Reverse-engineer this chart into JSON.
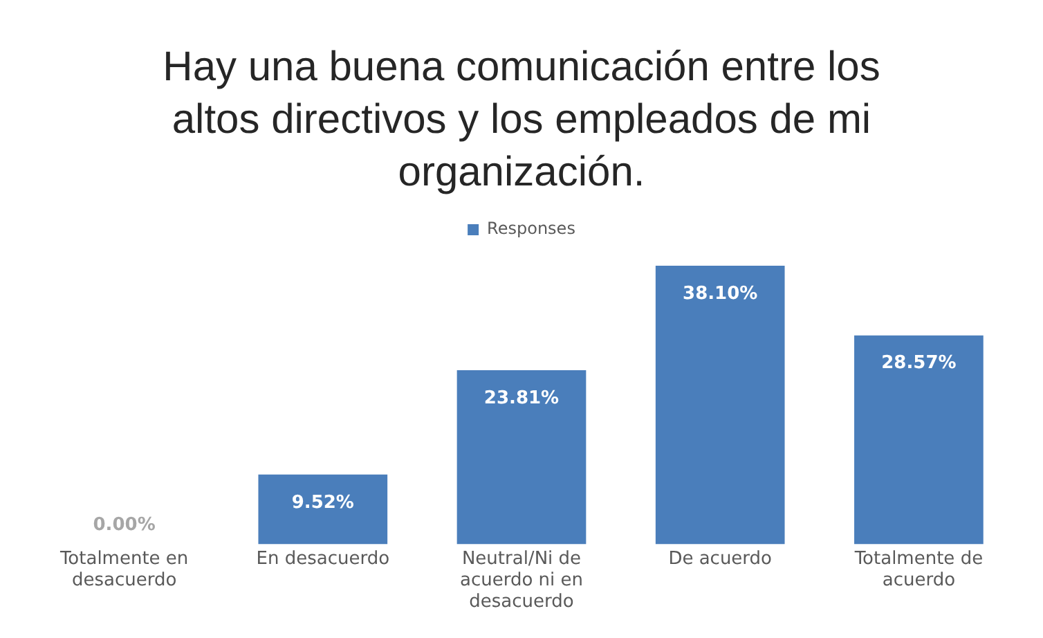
{
  "chart_data": {
    "type": "bar",
    "title": "Hay una buena comunicación entre los altos directivos y los empleados de mi organización.",
    "categories": [
      "Totalmente en desacuerdo",
      "En desacuerdo",
      "Neutral/Ni de acuerdo ni en desacuerdo",
      "De acuerdo",
      "Totalmente de acuerdo"
    ],
    "series": [
      {
        "name": "Responses",
        "color": "#4a7ebb",
        "values": [
          0,
          9.52,
          23.81,
          38.1,
          28.57
        ],
        "value_labels": [
          "0.00%",
          "9.52%",
          "23.81%",
          "38.10%",
          "28.57%"
        ]
      }
    ],
    "legend": "top",
    "grid": false,
    "tick_labels": "x"
  }
}
